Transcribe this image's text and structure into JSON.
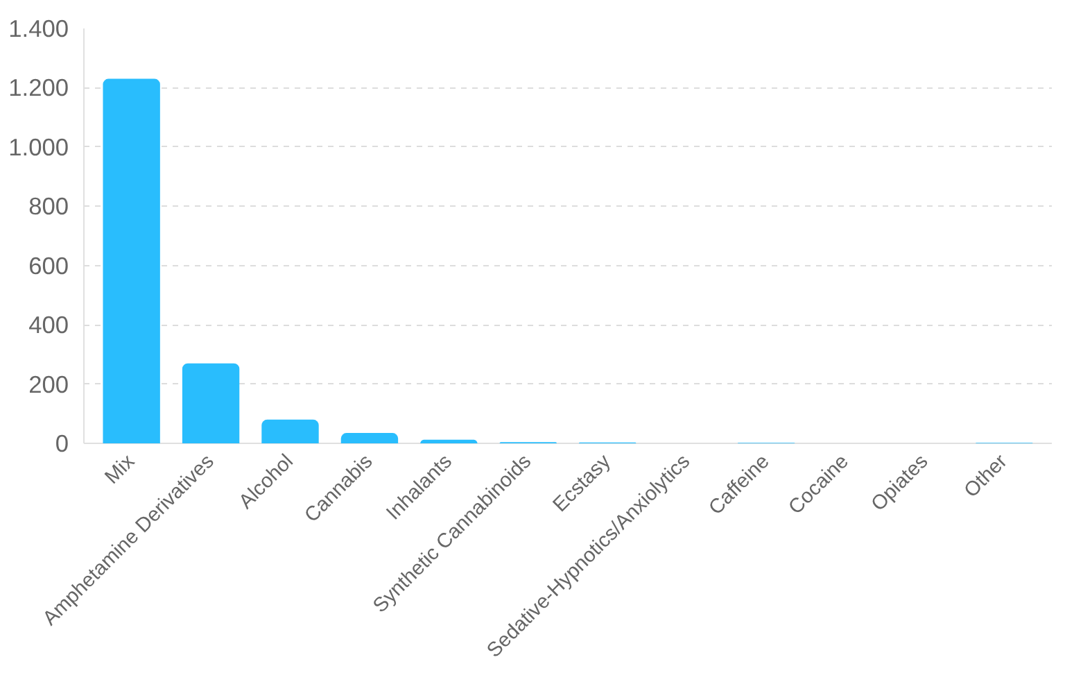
{
  "chart_data": {
    "type": "bar",
    "categories": [
      "Mix",
      "Amphetamine Derivatives",
      "Alcohol",
      "Cannabis",
      "Inhalants",
      "Synthetic Cannabinoids",
      "Ecstasy",
      "Sedative-Hypnotics/Anxiolytics",
      "Caffeine",
      "Cocaine",
      "Opiates",
      "Other"
    ],
    "values": [
      1230,
      270,
      80,
      35,
      12,
      4,
      3,
      0,
      2,
      0,
      0,
      2
    ],
    "color": "#29bdfd",
    "ylim": [
      0,
      1400
    ],
    "yticks": [
      {
        "value": 0,
        "label": "0"
      },
      {
        "value": 200,
        "label": "200"
      },
      {
        "value": 400,
        "label": "400"
      },
      {
        "value": 600,
        "label": "600"
      },
      {
        "value": 800,
        "label": "800"
      },
      {
        "value": 1000,
        "label": "1.000"
      },
      {
        "value": 1200,
        "label": "1.200"
      },
      {
        "value": 1400,
        "label": "1.400"
      }
    ],
    "grid": "y"
  }
}
